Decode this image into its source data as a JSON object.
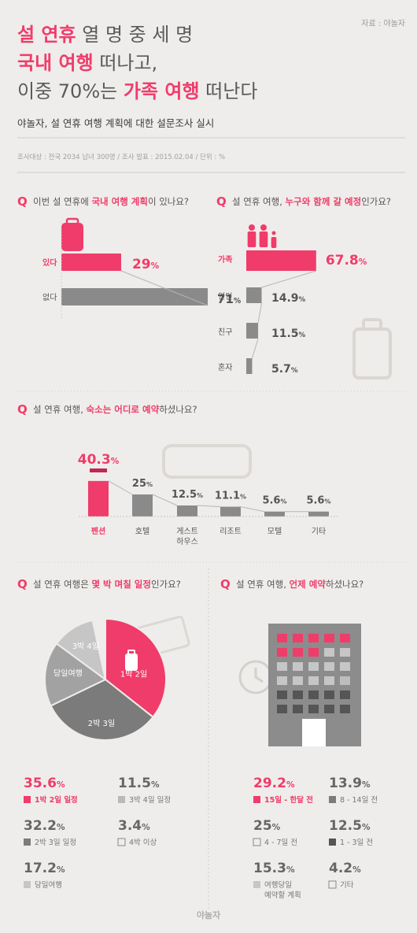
{
  "header": {
    "source": "자료 : 야놀자",
    "title_line1_a": "설 연휴",
    "title_line1_b": " 열 명 중 세 명",
    "title_line2_a": "국내 여행",
    "title_line2_b": " 떠나고,",
    "title_line3_a": "이중 70%는 ",
    "title_line3_b": "가족 여행",
    "title_line3_c": " 떠난다",
    "subtitle": "야놀자, 설 연휴 여행 계획에 대한 설문조사 실시",
    "survey_info": "조사대상 : 전국 2034 남녀 300명 / 조사 발표 : 2015.02.04 / 단위 : %"
  },
  "colors": {
    "accent": "#f03c6a",
    "gray": "#8a8a8a",
    "light_gray": "#b8b8b8",
    "dark_gray": "#6e6e6e",
    "bg": "#efedeb"
  },
  "q1": {
    "q": "Q",
    "a": "이번 설 연휴에 ",
    "b": "국내 여행 계획",
    "c": "이 있나요?"
  },
  "q2": {
    "q": "Q",
    "a": "설 연휴 여행, ",
    "b": "누구와 함께 갈 예정",
    "c": "인가요?"
  },
  "q3": {
    "q": "Q",
    "a": "설 연휴 여행, ",
    "b": "숙소는 어디로 예약",
    "c": "하셨나요?"
  },
  "q4": {
    "q": "Q",
    "a": "설 연휴 여행은 ",
    "b": "몇 박 며칠 일정",
    "c": "인가요?"
  },
  "q5": {
    "q": "Q",
    "a": "설 연휴 여행, ",
    "b": "언제 예약",
    "c": "하셨나요?"
  },
  "chart_data": [
    {
      "type": "bar",
      "categories": [
        "있다",
        "없다"
      ],
      "values": [
        29,
        71
      ],
      "value_labels": [
        "29%",
        "71%"
      ]
    },
    {
      "type": "bar",
      "categories": [
        "가족",
        "연인",
        "친구",
        "혼자"
      ],
      "values": [
        67.8,
        14.9,
        11.5,
        5.7
      ],
      "value_labels": [
        "67.8%",
        "14.9%",
        "11.5%",
        "5.7%"
      ]
    },
    {
      "type": "bar",
      "categories": [
        "펜션",
        "호텔",
        "게스트\n하우스",
        "리조트",
        "모텔",
        "기타"
      ],
      "values": [
        40.3,
        25,
        12.5,
        11.1,
        5.6,
        5.6
      ],
      "value_labels": [
        "40.3%",
        "25%",
        "12.5%",
        "11.1%",
        "5.6%",
        "5.6%"
      ]
    },
    {
      "type": "pie",
      "categories": [
        "1박 2일",
        "2박 3일",
        "당일여행",
        "3박 4일",
        "4박 이상"
      ],
      "values": [
        35.6,
        32.2,
        17.2,
        11.5,
        3.4
      ],
      "legend": [
        {
          "value": "35.6%",
          "label": "1박 2일 일정"
        },
        {
          "value": "11.5%",
          "label": "3박 4일 일정"
        },
        {
          "value": "32.2%",
          "label": "2박 3일 일정"
        },
        {
          "value": "3.4%",
          "label": "4박 이상"
        },
        {
          "value": "17.2%",
          "label": "당일여행"
        }
      ]
    },
    {
      "type": "table",
      "categories": [
        "15일 - 한달 전",
        "8 - 14일 전",
        "4 - 7일 전",
        "1 - 3일 전",
        "여행당일 예약할 계획",
        "기타"
      ],
      "values": [
        29.2,
        13.9,
        25,
        12.5,
        15.3,
        4.2
      ],
      "legend": [
        {
          "value": "29.2%",
          "label": "15일 - 한달 전"
        },
        {
          "value": "13.9%",
          "label": "8 - 14일 전"
        },
        {
          "value": "25%",
          "label": "4 - 7일 전"
        },
        {
          "value": "12.5%",
          "label": "1 - 3일 전"
        },
        {
          "value": "15.3%",
          "label": "여행당일\n예약할 계획"
        },
        {
          "value": "4.2%",
          "label": "기타"
        }
      ]
    }
  ],
  "footer": {
    "logo": "야놀자"
  }
}
